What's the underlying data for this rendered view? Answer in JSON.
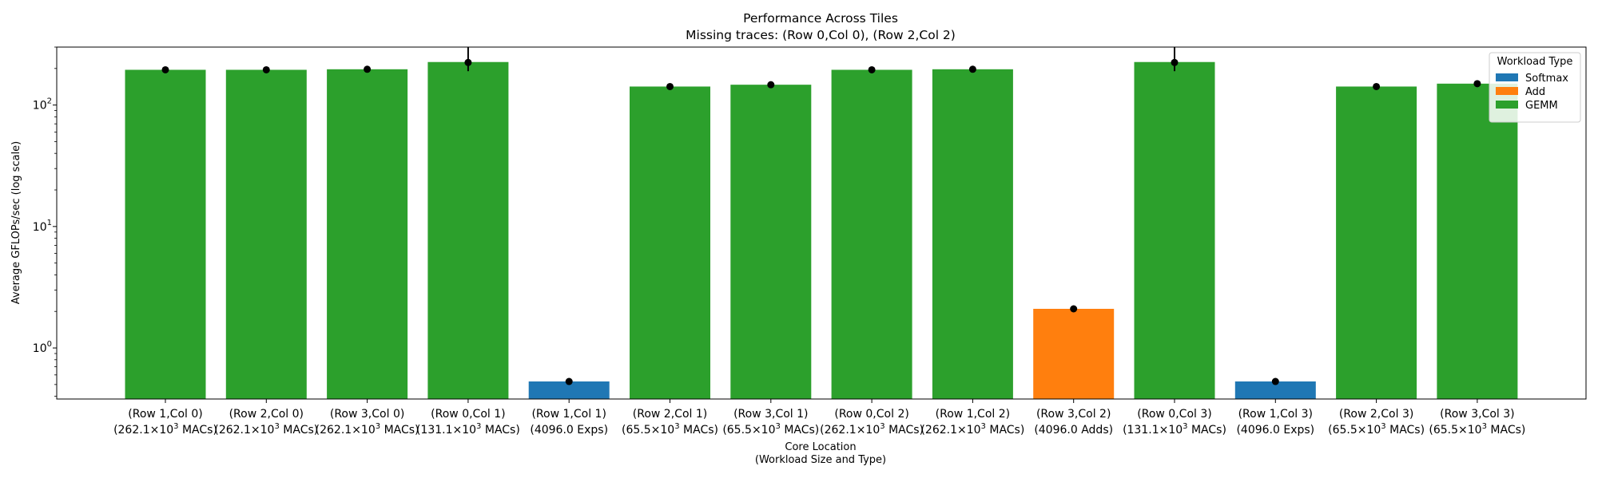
{
  "chart_data": {
    "type": "bar",
    "title": "Performance Across Tiles",
    "subtitle": "Missing traces: (Row 0,Col 0), (Row 2,Col 2)",
    "xlabel": "Core Location",
    "xlabel_sub": "(Workload Size and Type)",
    "ylabel": "Average GFLOPs/sec (log scale)",
    "yscale": "log",
    "ylim": [
      0.38,
      300
    ],
    "yticks": [
      {
        "value": 1,
        "base": "10",
        "exp": "0"
      },
      {
        "value": 10,
        "base": "10",
        "exp": "1"
      },
      {
        "value": 100,
        "base": "10",
        "exp": "2"
      }
    ],
    "grid": false,
    "legend": {
      "title": "Workload Type",
      "placement": "top-right",
      "items": [
        {
          "label": "Softmax",
          "color": "#1f77b4"
        },
        {
          "label": "Add",
          "color": "#ff7f0e"
        },
        {
          "label": "GEMM",
          "color": "#2ca02c"
        }
      ]
    },
    "colors": {
      "Softmax": "#1f77b4",
      "Add": "#ff7f0e",
      "GEMM": "#2ca02c"
    },
    "bars": [
      {
        "line1": "(Row 1,Col 0)",
        "line2": {
          "pre": "(262.1×10",
          "sup": "3",
          "post": " MACs)"
        },
        "type": "GEMM",
        "value": 195,
        "mean": 195
      },
      {
        "line1": "(Row 2,Col 0)",
        "line2": {
          "pre": "(262.1×10",
          "sup": "3",
          "post": " MACs)"
        },
        "type": "GEMM",
        "value": 195,
        "mean": 195
      },
      {
        "line1": "(Row 3,Col 0)",
        "line2": {
          "pre": "(262.1×10",
          "sup": "3",
          "post": " MACs)"
        },
        "type": "GEMM",
        "value": 197,
        "mean": 197
      },
      {
        "line1": "(Row 0,Col 1)",
        "line2": {
          "pre": "(131.1×10",
          "sup": "3",
          "post": " MACs)"
        },
        "type": "GEMM",
        "value": 226,
        "mean": 224,
        "err_low": 190,
        "err_high": 310
      },
      {
        "line1": "(Row 1,Col 1)",
        "line2": {
          "pre": "(4096.0 Exps)",
          "sup": "",
          "post": ""
        },
        "type": "Softmax",
        "value": 0.53,
        "mean": 0.53
      },
      {
        "line1": "(Row 2,Col 1)",
        "line2": {
          "pre": "(65.5×10",
          "sup": "3",
          "post": " MACs)"
        },
        "type": "GEMM",
        "value": 142,
        "mean": 142
      },
      {
        "line1": "(Row 3,Col 1)",
        "line2": {
          "pre": "(65.5×10",
          "sup": "3",
          "post": " MACs)"
        },
        "type": "GEMM",
        "value": 147,
        "mean": 147,
        "err_low": 140,
        "err_high": 155
      },
      {
        "line1": "(Row 0,Col 2)",
        "line2": {
          "pre": "(262.1×10",
          "sup": "3",
          "post": " MACs)"
        },
        "type": "GEMM",
        "value": 195,
        "mean": 195
      },
      {
        "line1": "(Row 1,Col 2)",
        "line2": {
          "pre": "(262.1×10",
          "sup": "3",
          "post": " MACs)"
        },
        "type": "GEMM",
        "value": 197,
        "mean": 197
      },
      {
        "line1": "(Row 3,Col 2)",
        "line2": {
          "pre": "(4096.0 Adds)",
          "sup": "",
          "post": ""
        },
        "type": "Add",
        "value": 2.1,
        "mean": 2.1
      },
      {
        "line1": "(Row 0,Col 3)",
        "line2": {
          "pre": "(131.1×10",
          "sup": "3",
          "post": " MACs)"
        },
        "type": "GEMM",
        "value": 226,
        "mean": 224,
        "err_low": 190,
        "err_high": 310
      },
      {
        "line1": "(Row 1,Col 3)",
        "line2": {
          "pre": "(4096.0 Exps)",
          "sup": "",
          "post": ""
        },
        "type": "Softmax",
        "value": 0.53,
        "mean": 0.53
      },
      {
        "line1": "(Row 2,Col 3)",
        "line2": {
          "pre": "(65.5×10",
          "sup": "3",
          "post": " MACs)"
        },
        "type": "GEMM",
        "value": 142,
        "mean": 142
      },
      {
        "line1": "(Row 3,Col 3)",
        "line2": {
          "pre": "(65.5×10",
          "sup": "3",
          "post": " MACs)"
        },
        "type": "GEMM",
        "value": 150,
        "mean": 150
      }
    ]
  }
}
